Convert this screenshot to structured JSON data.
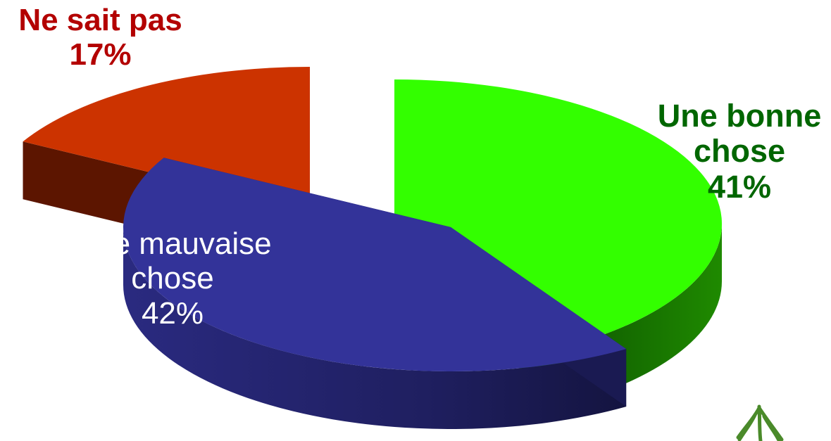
{
  "chart_data": {
    "type": "pie",
    "title": "",
    "slices": [
      {
        "label_lines": [
          "Une bonne",
          "chose"
        ],
        "value_label": "41%",
        "value": 41,
        "color": "#33ff00",
        "side_color": "#1a8000",
        "label_color": "#006600"
      },
      {
        "label_lines": [
          "Une mauvaise",
          "chose"
        ],
        "value_label": "42%",
        "value": 42,
        "color": "#333399",
        "side_color": "#1a1a52",
        "label_color": "#ffffff"
      },
      {
        "label_lines": [
          "Ne sait pas"
        ],
        "value_label": "17%",
        "value": 17,
        "color": "#cc3300",
        "side_color": "#5c1500",
        "label_color": "#b30000"
      }
    ],
    "legend": "none",
    "exploded": true,
    "three_d": true
  },
  "decoration": {
    "icon": "plant-doodle-icon",
    "color": "#4a8a2a"
  }
}
